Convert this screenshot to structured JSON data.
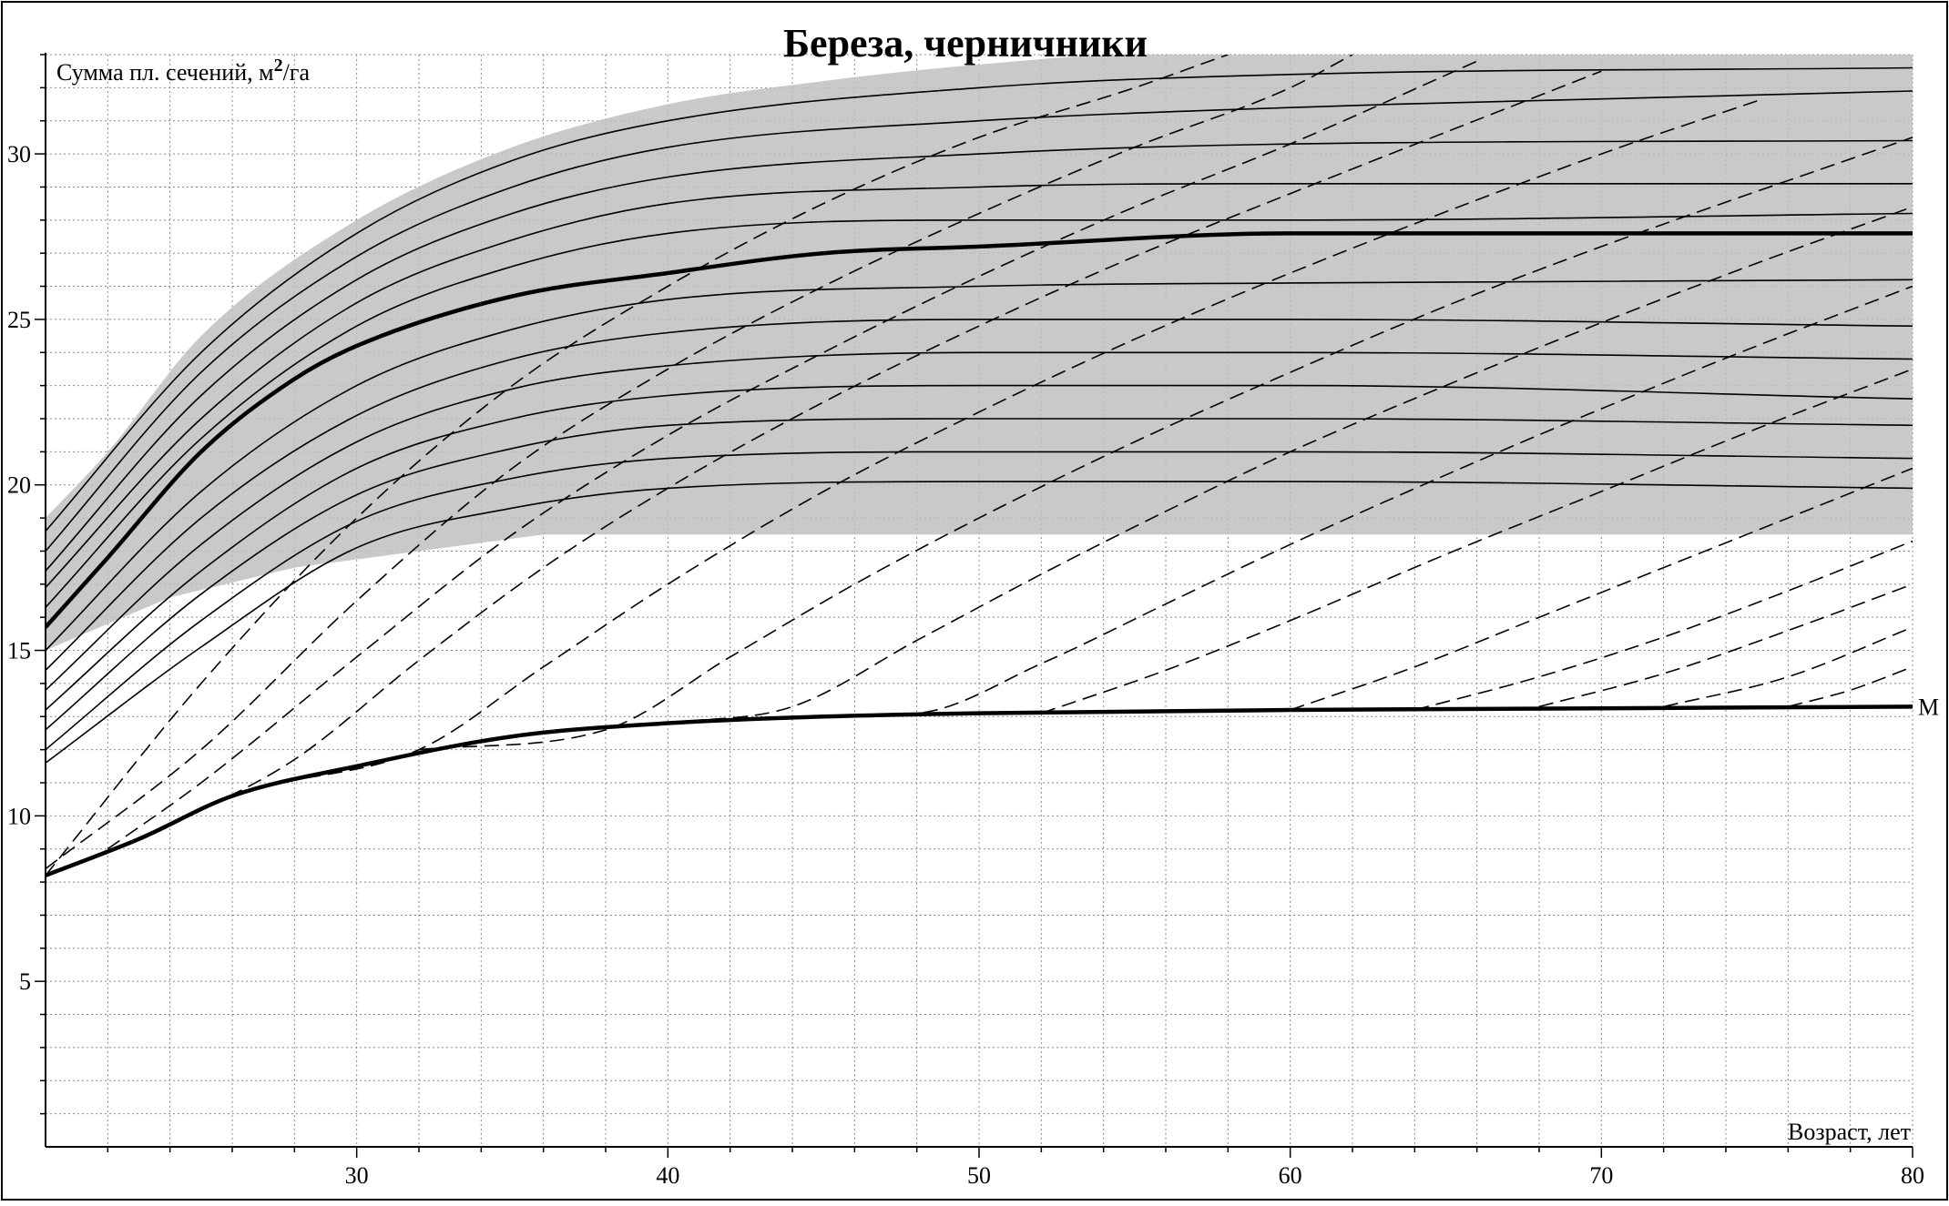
{
  "chart_data": {
    "type": "line",
    "title": "Береза, черничники",
    "ylabel": "Сумма пл. сечений, м",
    "ylabel_sup": "2",
    "ylabel_tail": "/га",
    "xlabel": "Возраст, лет",
    "xlim": [
      20,
      80
    ],
    "ylim": [
      0,
      33
    ],
    "xticks": [
      30,
      40,
      50,
      60,
      70,
      80
    ],
    "yticks": [
      5,
      10,
      15,
      20,
      25,
      30
    ],
    "grid": true,
    "shaded_band": {
      "upper": [
        [
          20,
          19.0
        ],
        [
          22,
          21.0
        ],
        [
          25,
          24.5
        ],
        [
          30,
          28.0
        ],
        [
          35,
          30.2
        ],
        [
          40,
          31.5
        ],
        [
          45,
          32.2
        ],
        [
          50,
          32.7
        ],
        [
          55,
          33.0
        ],
        [
          60,
          33.0
        ],
        [
          80,
          33.0
        ]
      ],
      "lower": [
        [
          20,
          15.0
        ],
        [
          24,
          16.6
        ],
        [
          28,
          17.5
        ],
        [
          32,
          18.0
        ],
        [
          36,
          18.5
        ],
        [
          80,
          18.5
        ]
      ]
    },
    "thin_series": [
      {
        "values": [
          [
            20,
            18.6
          ],
          [
            25,
            24.0
          ],
          [
            30,
            27.6
          ],
          [
            35,
            29.8
          ],
          [
            40,
            31.0
          ],
          [
            50,
            32.0
          ],
          [
            60,
            32.4
          ],
          [
            80,
            32.6
          ]
        ]
      },
      {
        "values": [
          [
            20,
            18.0
          ],
          [
            25,
            23.4
          ],
          [
            30,
            26.9
          ],
          [
            35,
            29.0
          ],
          [
            40,
            30.2
          ],
          [
            50,
            31.0
          ],
          [
            60,
            31.4
          ],
          [
            80,
            31.9
          ]
        ]
      },
      {
        "values": [
          [
            20,
            17.4
          ],
          [
            25,
            22.7
          ],
          [
            30,
            26.2
          ],
          [
            35,
            28.2
          ],
          [
            40,
            29.3
          ],
          [
            50,
            30.0
          ],
          [
            60,
            30.3
          ],
          [
            80,
            30.4
          ]
        ]
      },
      {
        "values": [
          [
            20,
            16.9
          ],
          [
            25,
            22.0
          ],
          [
            30,
            25.5
          ],
          [
            35,
            27.4
          ],
          [
            40,
            28.5
          ],
          [
            50,
            29.0
          ],
          [
            60,
            29.1
          ],
          [
            80,
            29.1
          ]
        ]
      },
      {
        "values": [
          [
            20,
            16.3
          ],
          [
            25,
            21.4
          ],
          [
            30,
            24.8
          ],
          [
            35,
            26.6
          ],
          [
            40,
            27.6
          ],
          [
            50,
            28.0
          ],
          [
            60,
            28.0
          ],
          [
            80,
            28.2
          ]
        ]
      },
      {
        "values": [
          [
            20,
            15.0
          ],
          [
            25,
            19.8
          ],
          [
            30,
            23.0
          ],
          [
            35,
            24.7
          ],
          [
            40,
            25.6
          ],
          [
            50,
            26.0
          ],
          [
            60,
            26.1
          ],
          [
            80,
            26.2
          ]
        ]
      },
      {
        "values": [
          [
            20,
            14.4
          ],
          [
            25,
            19.0
          ],
          [
            30,
            22.1
          ],
          [
            35,
            23.8
          ],
          [
            40,
            24.6
          ],
          [
            50,
            25.0
          ],
          [
            60,
            25.0
          ],
          [
            80,
            24.8
          ]
        ]
      },
      {
        "values": [
          [
            20,
            13.8
          ],
          [
            25,
            18.2
          ],
          [
            30,
            21.3
          ],
          [
            35,
            22.9
          ],
          [
            40,
            23.6
          ],
          [
            50,
            24.0
          ],
          [
            60,
            24.0
          ],
          [
            80,
            23.8
          ]
        ]
      },
      {
        "values": [
          [
            20,
            13.2
          ],
          [
            25,
            17.4
          ],
          [
            30,
            20.5
          ],
          [
            35,
            22.0
          ],
          [
            40,
            22.7
          ],
          [
            50,
            23.0
          ],
          [
            60,
            23.0
          ],
          [
            80,
            22.6
          ]
        ]
      },
      {
        "values": [
          [
            20,
            12.6
          ],
          [
            25,
            16.7
          ],
          [
            30,
            19.7
          ],
          [
            35,
            21.1
          ],
          [
            40,
            21.8
          ],
          [
            50,
            22.0
          ],
          [
            60,
            22.0
          ],
          [
            80,
            21.8
          ]
        ]
      },
      {
        "values": [
          [
            20,
            12.0
          ],
          [
            25,
            15.9
          ],
          [
            30,
            18.9
          ],
          [
            35,
            20.2
          ],
          [
            40,
            20.8
          ],
          [
            50,
            21.0
          ],
          [
            60,
            21.0
          ],
          [
            80,
            20.8
          ]
        ]
      },
      {
        "values": [
          [
            20,
            11.6
          ],
          [
            25,
            15.1
          ],
          [
            30,
            18.1
          ],
          [
            35,
            19.3
          ],
          [
            40,
            19.9
          ],
          [
            50,
            20.1
          ],
          [
            60,
            20.1
          ],
          [
            80,
            19.9
          ]
        ]
      }
    ],
    "bold_series": [
      {
        "values": [
          [
            20,
            15.7
          ],
          [
            22,
            17.8
          ],
          [
            25,
            21.0
          ],
          [
            28,
            23.2
          ],
          [
            30,
            24.2
          ],
          [
            35,
            25.7
          ],
          [
            40,
            26.4
          ],
          [
            45,
            27.0
          ],
          [
            50,
            27.2
          ],
          [
            60,
            27.6
          ],
          [
            80,
            27.6
          ]
        ]
      },
      {
        "values": [
          [
            20,
            8.2
          ],
          [
            23,
            9.3
          ],
          [
            26,
            10.6
          ],
          [
            30,
            11.5
          ],
          [
            35,
            12.4
          ],
          [
            40,
            12.8
          ],
          [
            45,
            13.0
          ],
          [
            50,
            13.1
          ],
          [
            60,
            13.2
          ],
          [
            80,
            13.3
          ]
        ],
        "label": "М"
      }
    ],
    "dashed_series": [
      {
        "values": [
          [
            20,
            8.2
          ],
          [
            25,
            14.0
          ],
          [
            30,
            19.0
          ],
          [
            35,
            23.0
          ],
          [
            40,
            26.0
          ],
          [
            45,
            28.5
          ],
          [
            50,
            30.5
          ],
          [
            55,
            32.0
          ],
          [
            58,
            33.0
          ]
        ]
      },
      {
        "values": [
          [
            20,
            8.4
          ],
          [
            25,
            12.0
          ],
          [
            30,
            16.5
          ],
          [
            35,
            20.5
          ],
          [
            40,
            23.5
          ],
          [
            45,
            26.0
          ],
          [
            50,
            28.2
          ],
          [
            55,
            30.2
          ],
          [
            60,
            32.0
          ],
          [
            62,
            33.0
          ]
        ]
      },
      {
        "values": [
          [
            22,
            9.0
          ],
          [
            25,
            11.0
          ],
          [
            30,
            14.8
          ],
          [
            35,
            18.5
          ],
          [
            40,
            21.5
          ],
          [
            45,
            24.0
          ],
          [
            50,
            26.3
          ],
          [
            55,
            28.4
          ],
          [
            60,
            30.3
          ],
          [
            66,
            32.8
          ]
        ]
      },
      {
        "values": [
          [
            24,
            9.7
          ],
          [
            28,
            11.7
          ],
          [
            32,
            14.7
          ],
          [
            36,
            17.5
          ],
          [
            40,
            19.9
          ],
          [
            45,
            22.5
          ],
          [
            50,
            24.8
          ],
          [
            55,
            26.9
          ],
          [
            60,
            28.8
          ],
          [
            70,
            32.5
          ]
        ]
      },
      {
        "values": [
          [
            27,
            10.9
          ],
          [
            32,
            12.0
          ],
          [
            36,
            14.5
          ],
          [
            40,
            17.0
          ],
          [
            45,
            19.8
          ],
          [
            50,
            22.2
          ],
          [
            55,
            24.4
          ],
          [
            60,
            26.4
          ],
          [
            70,
            30.0
          ],
          [
            75,
            31.6
          ]
        ]
      },
      {
        "values": [
          [
            32,
            12.0
          ],
          [
            38,
            12.6
          ],
          [
            42,
            14.8
          ],
          [
            46,
            17.0
          ],
          [
            50,
            19.0
          ],
          [
            55,
            21.3
          ],
          [
            60,
            23.4
          ],
          [
            65,
            25.4
          ],
          [
            70,
            27.2
          ],
          [
            80,
            30.5
          ]
        ]
      },
      {
        "values": [
          [
            40,
            12.8
          ],
          [
            44,
            13.3
          ],
          [
            48,
            15.3
          ],
          [
            52,
            17.3
          ],
          [
            56,
            19.2
          ],
          [
            60,
            21.0
          ],
          [
            65,
            23.0
          ],
          [
            70,
            24.9
          ],
          [
            75,
            26.7
          ],
          [
            80,
            28.4
          ]
        ]
      },
      {
        "values": [
          [
            44,
            13.0
          ],
          [
            48,
            13.1
          ],
          [
            52,
            14.6
          ],
          [
            56,
            16.4
          ],
          [
            60,
            18.2
          ],
          [
            65,
            20.3
          ],
          [
            70,
            22.3
          ],
          [
            75,
            24.2
          ],
          [
            80,
            26.0
          ]
        ]
      },
      {
        "values": [
          [
            52,
            13.1
          ],
          [
            56,
            14.4
          ],
          [
            60,
            15.9
          ],
          [
            65,
            17.9
          ],
          [
            70,
            19.8
          ],
          [
            75,
            21.7
          ],
          [
            80,
            23.5
          ]
        ]
      },
      {
        "values": [
          [
            60,
            13.2
          ],
          [
            64,
            14.5
          ],
          [
            68,
            16.0
          ],
          [
            72,
            17.5
          ],
          [
            76,
            19.0
          ],
          [
            80,
            20.5
          ]
        ]
      },
      {
        "values": [
          [
            64,
            13.2
          ],
          [
            68,
            14.2
          ],
          [
            72,
            15.4
          ],
          [
            76,
            16.8
          ],
          [
            80,
            18.3
          ]
        ]
      },
      {
        "values": [
          [
            68,
            13.3
          ],
          [
            72,
            14.3
          ],
          [
            76,
            15.6
          ],
          [
            80,
            17.0
          ]
        ]
      },
      {
        "values": [
          [
            72,
            13.3
          ],
          [
            76,
            14.2
          ],
          [
            80,
            15.7
          ]
        ]
      },
      {
        "values": [
          [
            76,
            13.3
          ],
          [
            78,
            13.8
          ],
          [
            80,
            14.5
          ]
        ]
      }
    ]
  }
}
